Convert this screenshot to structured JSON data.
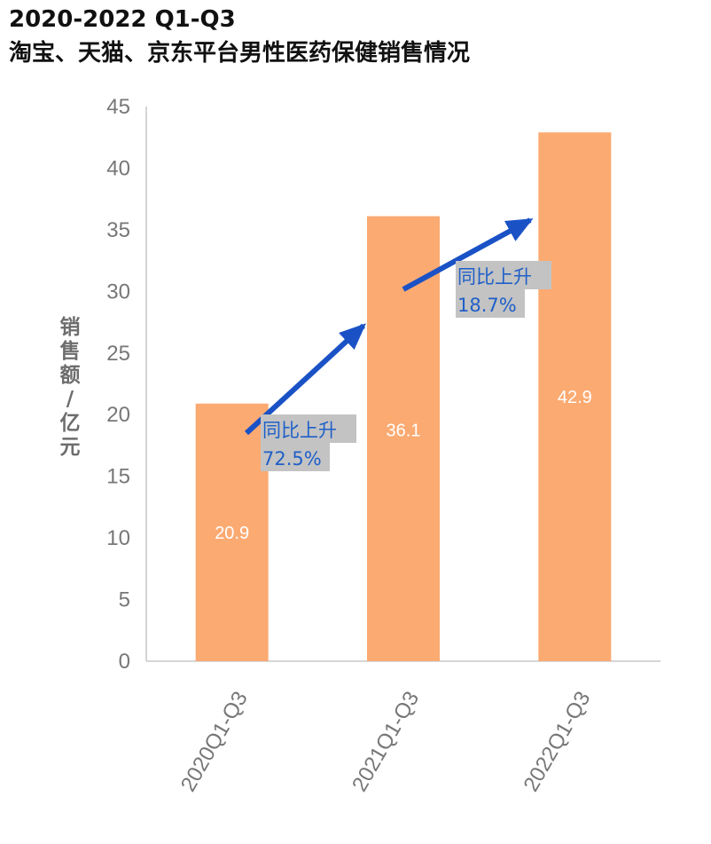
{
  "chart_data": {
    "type": "bar",
    "title_line1": "2020-2022 Q1-Q3",
    "title_line2": "淘宝、天猫、京东平台男性医药保健销售情况",
    "ylabel": [
      "销",
      "售",
      "额",
      "/",
      "亿",
      "元"
    ],
    "xlabel": "",
    "categories": [
      "2020Q1-Q3",
      "2021Q1-Q3",
      "2022Q1-Q3"
    ],
    "values": [
      20.9,
      36.1,
      42.9
    ],
    "data_labels": [
      "20.9",
      "36.1",
      "42.9"
    ],
    "ylim": [
      0,
      45
    ],
    "yticks": [
      0,
      5,
      10,
      15,
      20,
      25,
      30,
      35,
      40,
      45
    ],
    "grid": false,
    "bar_color": "#fbaa72",
    "arrow_color": "#1a52c6",
    "annotations": [
      {
        "text1": "同比上升",
        "text2": "72.5%",
        "from": "2020Q1-Q3",
        "to": "2021Q1-Q3"
      },
      {
        "text1": "同比上升",
        "text2": "18.7%",
        "from": "2021Q1-Q3",
        "to": "2022Q1-Q3"
      }
    ]
  }
}
